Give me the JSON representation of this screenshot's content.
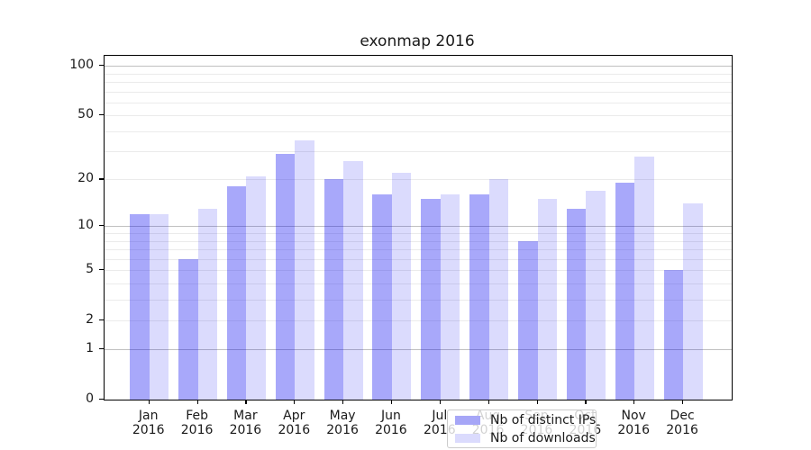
{
  "chart_data": {
    "type": "bar",
    "title": "exonmap 2016",
    "categories": [
      "Jan",
      "Feb",
      "Mar",
      "Apr",
      "May",
      "Jun",
      "Jul",
      "Aug",
      "Sep",
      "Oct",
      "Nov",
      "Dec"
    ],
    "xtick_year": "2016",
    "series": [
      {
        "name": "Nb of distinct IPs",
        "color_hex": "#a6a6f7",
        "fill": "rgba(0,0,240,0.34)",
        "values": [
          12,
          6,
          18,
          29,
          20,
          16,
          15,
          16,
          8,
          13,
          19,
          5
        ]
      },
      {
        "name": "Nb of downloads",
        "color_hex": "#dbdbfd",
        "fill": "rgba(0,0,240,0.14)",
        "values": [
          12,
          13,
          21,
          35,
          26,
          22,
          16,
          20,
          15,
          17,
          28,
          14
        ]
      }
    ],
    "yscale": "log1p",
    "ylim": [
      0,
      115
    ],
    "ytick_values": [
      0,
      1,
      2,
      5,
      10,
      20,
      50,
      100
    ],
    "grid_minor_values": [
      2,
      3,
      4,
      5,
      6,
      7,
      8,
      9,
      20,
      30,
      40,
      50,
      60,
      70,
      80,
      90
    ],
    "grid_major_values": [
      1,
      10,
      100
    ],
    "legend_position": "lower center",
    "xlabel": "",
    "ylabel": ""
  },
  "colors": {
    "spine": "#000000",
    "grid_minor": "#ebebeb",
    "grid_major": "#c0c0c0",
    "text": "#1a1a1a"
  }
}
